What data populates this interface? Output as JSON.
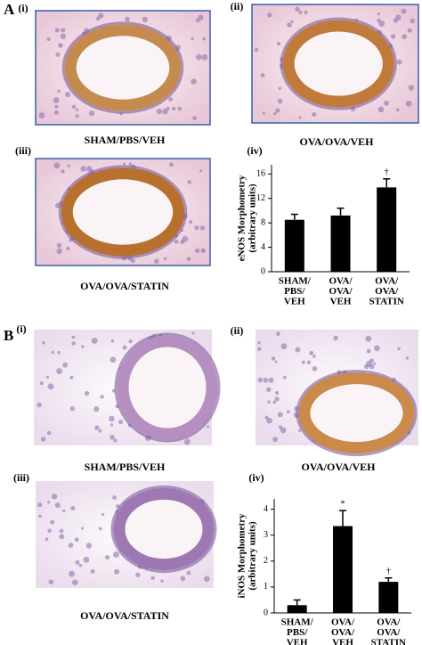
{
  "panels": [
    {
      "label": "A",
      "images": [
        {
          "label": "(i)",
          "caption": "SHAM/PBS/VEH"
        },
        {
          "label": "(ii)",
          "caption": "OVA/OVA/VEH"
        },
        {
          "label": "(iii)",
          "caption": "OVA/OVA/STATIN"
        }
      ],
      "chart": {
        "type": "bar",
        "label": "(iv)",
        "y_label": [
          "eNOS Morphometry",
          "(arbitrary units)"
        ],
        "categories": [
          [
            "SHAM/",
            "PBS/",
            "VEH"
          ],
          [
            "OVA/",
            "OVA/",
            "VEH"
          ],
          [
            "OVA/",
            "OVA/",
            "STATIN"
          ]
        ],
        "values": [
          8.5,
          9.2,
          13.8
        ],
        "errors": [
          0.9,
          1.2,
          1.4
        ],
        "annotations": [
          null,
          null,
          "†"
        ],
        "color": "#000000",
        "ylim": [
          0,
          17.5
        ],
        "yticks": [
          0,
          4,
          8,
          12,
          16
        ]
      }
    },
    {
      "label": "B",
      "images": [
        {
          "label": "(i)",
          "caption": "SHAM/PBS/VEH"
        },
        {
          "label": "(ii)",
          "caption": "OVA/OVA/VEH"
        },
        {
          "label": "(iii)",
          "caption": "OVA/OVA/STATIN"
        }
      ],
      "chart": {
        "type": "bar",
        "label": "(iv)",
        "y_label": [
          "iNOS Morphometry",
          "(arbitrary units)"
        ],
        "categories": [
          [
            "SHAM/",
            "PBS/",
            "VEH"
          ],
          [
            "OVA/",
            "OVA/",
            "VEH"
          ],
          [
            "OVA/",
            "OVA/",
            "STATIN"
          ]
        ],
        "values": [
          0.3,
          3.35,
          1.2
        ],
        "errors": [
          0.2,
          0.6,
          0.15
        ],
        "annotations": [
          null,
          "*",
          "†"
        ],
        "color": "#000000",
        "ylim": [
          0,
          4.4
        ],
        "yticks": [
          0,
          1,
          2,
          3,
          4
        ]
      }
    }
  ]
}
